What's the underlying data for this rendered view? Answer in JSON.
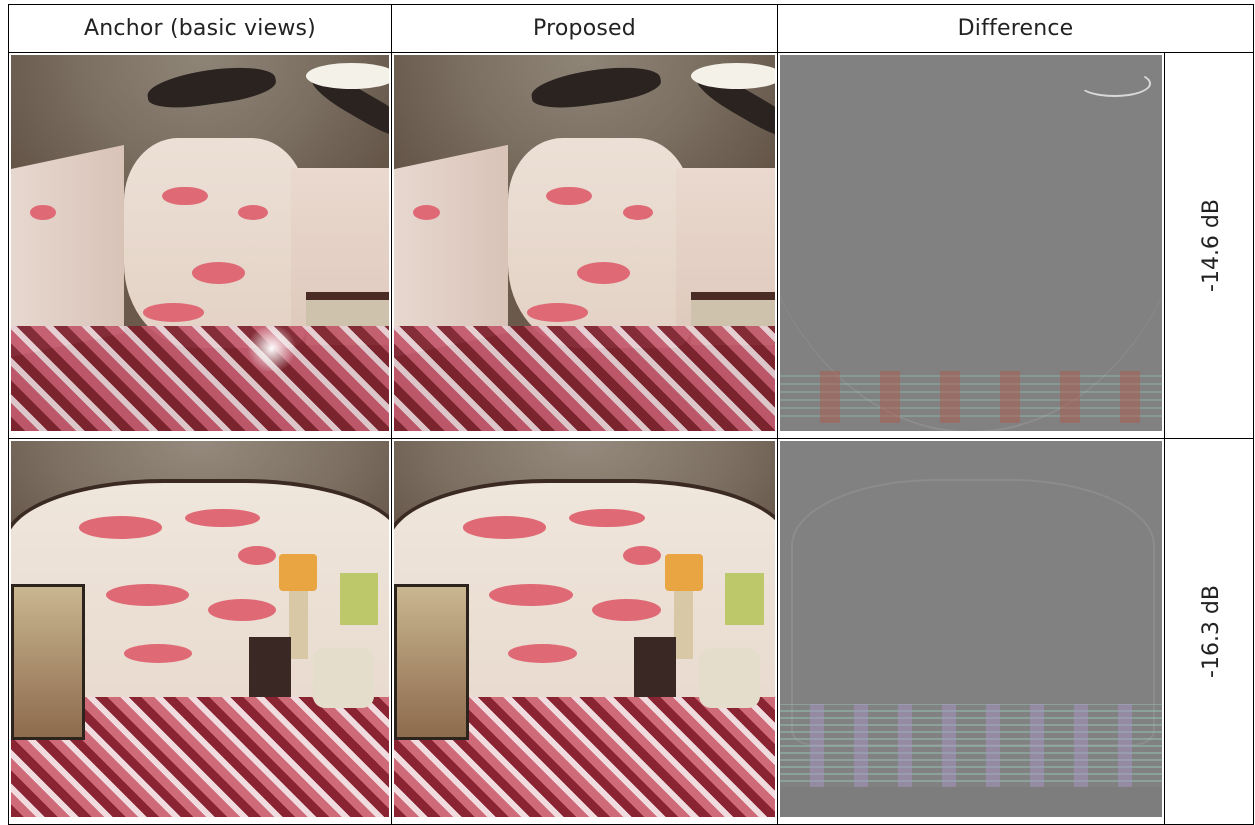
{
  "table": {
    "headers": [
      "Anchor (basic views)",
      "Proposed",
      "Difference"
    ],
    "rows": [
      {
        "label": "-14.6 dB"
      },
      {
        "label": "-16.3 dB"
      }
    ]
  },
  "colors": {
    "border": "#000000",
    "difference_gray": "#818181",
    "flamingo": "#df6a76"
  }
}
